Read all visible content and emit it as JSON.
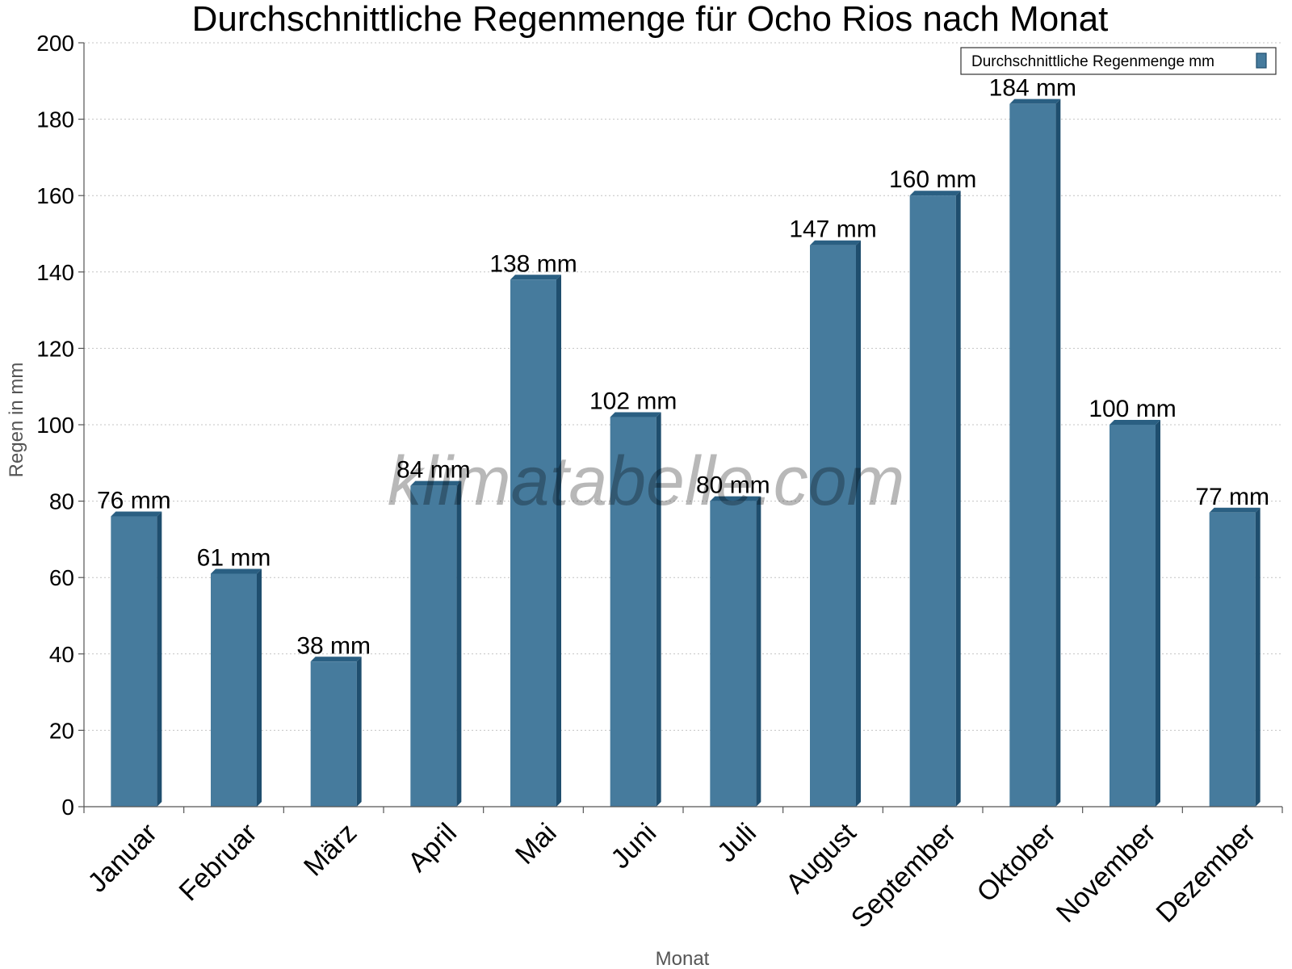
{
  "chart_data": {
    "type": "bar",
    "title": "Durchschnittliche Regenmenge für Ocho Rios nach Monat",
    "xlabel": "Monat",
    "ylabel": "Regen in mm",
    "categories": [
      "Januar",
      "Februar",
      "März",
      "April",
      "Mai",
      "Juni",
      "Juli",
      "August",
      "September",
      "Oktober",
      "November",
      "Dezember"
    ],
    "series": [
      {
        "name": "Durchschnittliche Regenmenge mm",
        "values": [
          76,
          61,
          38,
          84,
          138,
          102,
          80,
          147,
          160,
          184,
          100,
          77
        ],
        "labels": [
          "76 mm",
          "61 mm",
          "38 mm",
          "84 mm",
          "138 mm",
          "102 mm",
          "80 mm",
          "147 mm",
          "160 mm",
          "184 mm",
          "100 mm",
          "77 mm"
        ]
      }
    ],
    "yticks": [
      0,
      20,
      40,
      60,
      80,
      100,
      120,
      140,
      160,
      180,
      200
    ],
    "ylim": [
      0,
      200
    ],
    "grid": true,
    "legend_position": "top-right",
    "watermark": "klimatabelle.com",
    "colors": {
      "bar": "#467b9d",
      "bar_side": "#1f4e6e",
      "bar_top": "#2a5f82"
    }
  }
}
